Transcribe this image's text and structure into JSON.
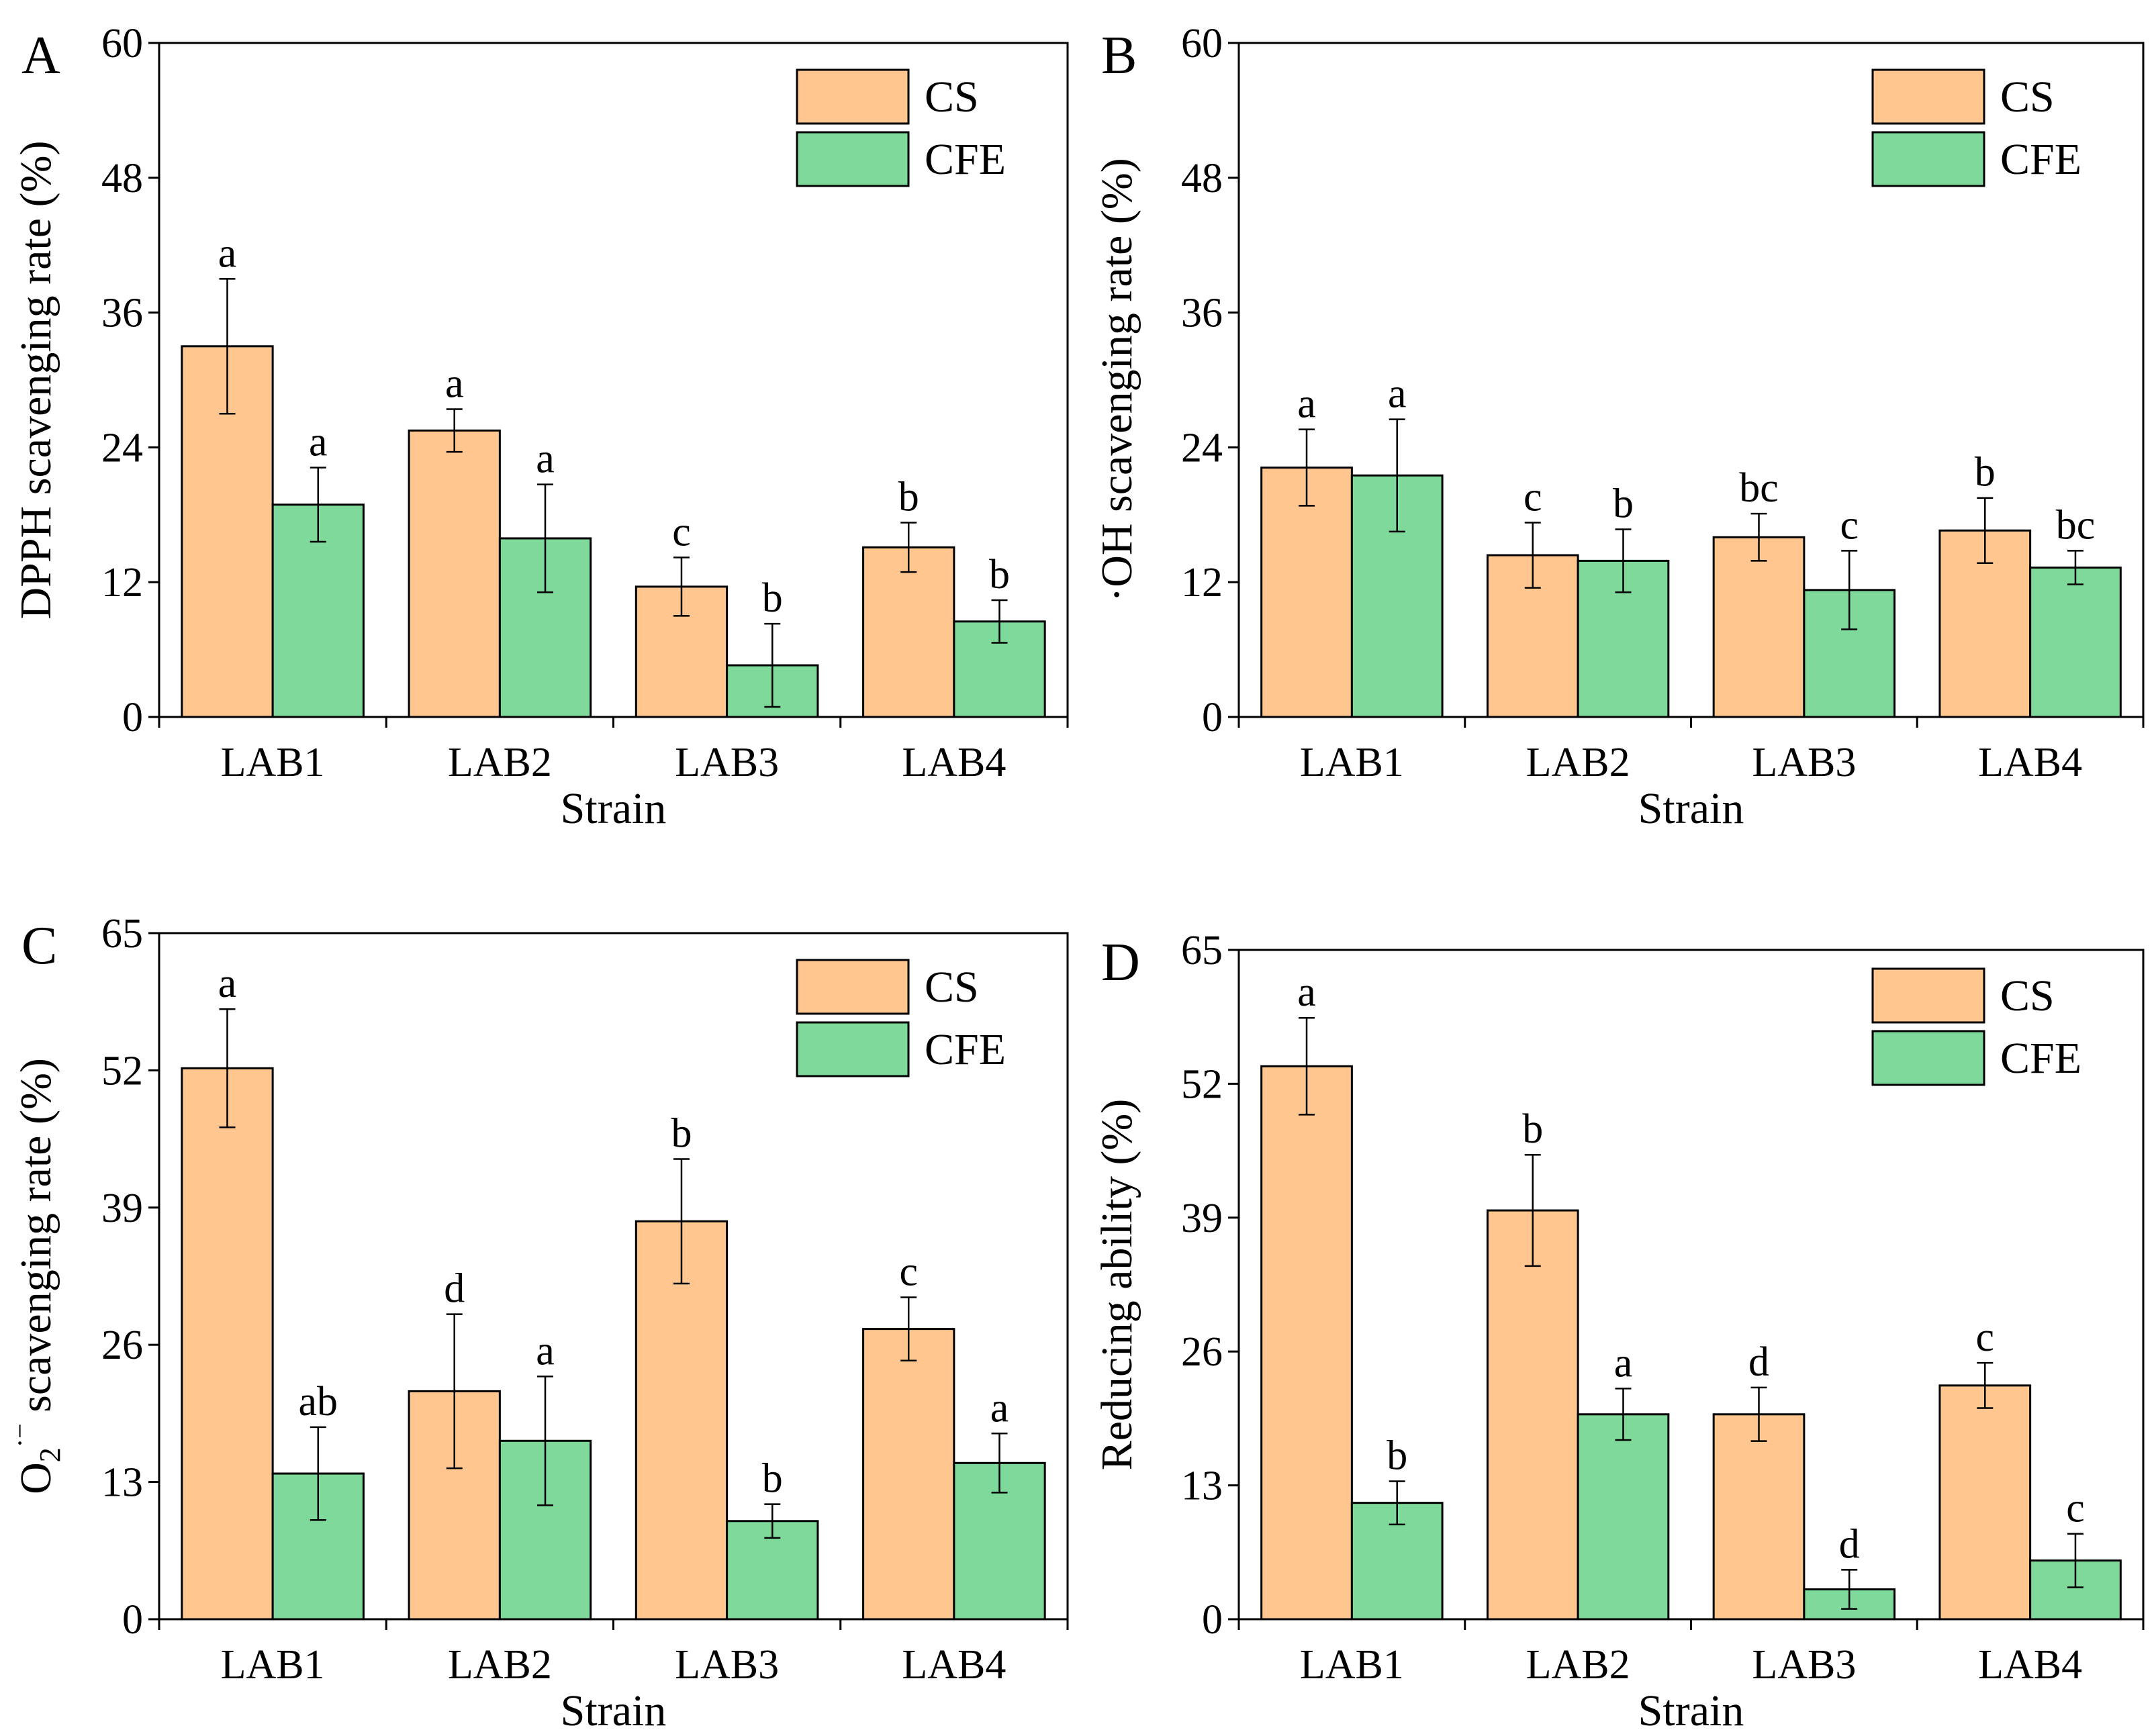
{
  "colors": {
    "CS": "#FFC690",
    "CFE": "#7ED99B"
  },
  "chart_data": [
    {
      "panel": "A",
      "type": "bar",
      "categories": [
        "LAB1",
        "LAB2",
        "LAB3",
        "LAB4"
      ],
      "xlabel": "Strain",
      "ylabel": "DPPH scavenging rate (%)",
      "ylim": [
        0,
        60
      ],
      "yticks": [
        0,
        12,
        24,
        36,
        48,
        60
      ],
      "legend": "top-right",
      "series": [
        {
          "name": "CS",
          "values": [
            33.0,
            25.5,
            11.6,
            15.1
          ],
          "errors": [
            6.0,
            1.9,
            2.6,
            2.2
          ],
          "labels": [
            "a",
            "a",
            "c",
            "b"
          ]
        },
        {
          "name": "CFE",
          "values": [
            18.9,
            15.9,
            4.6,
            8.5
          ],
          "errors": [
            3.3,
            4.8,
            3.7,
            1.9
          ],
          "labels": [
            "a",
            "a",
            "b",
            "b"
          ]
        }
      ]
    },
    {
      "panel": "B",
      "type": "bar",
      "categories": [
        "LAB1",
        "LAB2",
        "LAB3",
        "LAB4"
      ],
      "xlabel": "Strain",
      "ylabel": "·OH scavenging rate (%)",
      "ylim": [
        0,
        60
      ],
      "yticks": [
        0,
        12,
        24,
        36,
        48,
        60
      ],
      "legend": "top-right",
      "series": [
        {
          "name": "CS",
          "values": [
            22.2,
            14.4,
            16.0,
            16.6
          ],
          "errors": [
            3.4,
            2.9,
            2.1,
            2.9
          ],
          "labels": [
            "a",
            "c",
            "bc",
            "b"
          ]
        },
        {
          "name": "CFE",
          "values": [
            21.5,
            13.9,
            11.3,
            13.3
          ],
          "errors": [
            5.0,
            2.8,
            3.5,
            1.5
          ],
          "labels": [
            "a",
            "b",
            "c",
            "bc"
          ]
        }
      ]
    },
    {
      "panel": "C",
      "type": "bar",
      "categories": [
        "LAB1",
        "LAB2",
        "LAB3",
        "LAB4"
      ],
      "xlabel": "Strain",
      "ylabel": "O2·− scavenging rate (%)",
      "ylabel_parts": [
        "O",
        "2",
        "·−",
        " scavenging rate (%)"
      ],
      "ylim": [
        0,
        65
      ],
      "yticks": [
        0,
        13,
        26,
        39,
        52,
        65
      ],
      "legend": "top-right",
      "series": [
        {
          "name": "CS",
          "values": [
            52.2,
            21.6,
            37.7,
            27.5
          ],
          "errors": [
            5.6,
            7.3,
            5.9,
            3.0
          ],
          "labels": [
            "a",
            "d",
            "b",
            "c"
          ]
        },
        {
          "name": "CFE",
          "values": [
            13.8,
            16.9,
            9.3,
            14.8
          ],
          "errors": [
            4.4,
            6.1,
            1.6,
            2.8
          ],
          "labels": [
            "ab",
            "a",
            "b",
            "a"
          ]
        }
      ]
    },
    {
      "panel": "D",
      "type": "bar",
      "categories": [
        "LAB1",
        "LAB2",
        "LAB3",
        "LAB4"
      ],
      "xlabel": "Strain",
      "ylabel": "Reducing ability (%)",
      "ylim": [
        0,
        65
      ],
      "yticks": [
        0,
        13,
        26,
        39,
        52,
        65
      ],
      "legend": "top-right",
      "series": [
        {
          "name": "CS",
          "values": [
            53.7,
            39.7,
            19.9,
            22.7
          ],
          "errors": [
            4.7,
            5.4,
            2.6,
            2.2
          ],
          "labels": [
            "a",
            "b",
            "d",
            "c"
          ]
        },
        {
          "name": "CFE",
          "values": [
            11.3,
            19.9,
            2.9,
            5.7
          ],
          "errors": [
            2.1,
            2.5,
            1.9,
            2.6
          ],
          "labels": [
            "b",
            "a",
            "d",
            "c"
          ]
        }
      ]
    }
  ]
}
